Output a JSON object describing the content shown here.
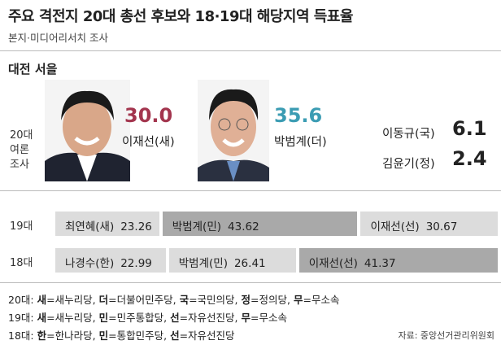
{
  "header": {
    "title": "주요 격전지 20대 총선 후보와 18·19대 해당지역 득표율",
    "subtitle": "본지·미디어리서치 조사"
  },
  "district": "대전 서을",
  "poll": {
    "label_lines": [
      "20대",
      "여론",
      "조사"
    ],
    "main": [
      {
        "name": "이재선(새)",
        "value": "30.0",
        "color": "#a3354e"
      },
      {
        "name": "박범계(더)",
        "value": "35.6",
        "color": "#3b9cb3"
      }
    ],
    "others": [
      {
        "name": "이동규(국)",
        "value": "6.1"
      },
      {
        "name": "김윤기(정)",
        "value": "2.4"
      }
    ]
  },
  "results": [
    {
      "label": "19대",
      "segments": [
        {
          "name": "최연혜(새)",
          "value": 23.26,
          "color": "#dcdcdc"
        },
        {
          "name": "박범계(민)",
          "value": 43.62,
          "color": "#a9a9a9"
        },
        {
          "name": "이재선(선)",
          "value": 30.67,
          "color": "#dcdcdc"
        }
      ]
    },
    {
      "label": "18대",
      "segments": [
        {
          "name": "나경수(한)",
          "value": 22.99,
          "color": "#dcdcdc"
        },
        {
          "name": "박범계(민)",
          "value": 26.41,
          "color": "#dcdcdc"
        },
        {
          "name": "이재선(선)",
          "value": 41.37,
          "color": "#a9a9a9"
        }
      ]
    }
  ],
  "legend": [
    {
      "label": "20대:",
      "items": [
        {
          "abbr": "새",
          "text": "=새누리당,"
        },
        {
          "abbr": "더",
          "text": "=더불어민주당,"
        },
        {
          "abbr": "국",
          "text": "=국민의당,"
        },
        {
          "abbr": "정",
          "text": "=정의당,"
        },
        {
          "abbr": "무",
          "text": "=무소속"
        }
      ]
    },
    {
      "label": "19대:",
      "items": [
        {
          "abbr": "새",
          "text": "=새누리당,"
        },
        {
          "abbr": "민",
          "text": "=민주통합당,"
        },
        {
          "abbr": "선",
          "text": "=자유선진당,"
        },
        {
          "abbr": "무",
          "text": "=무소속"
        }
      ]
    },
    {
      "label": "18대:",
      "items": [
        {
          "abbr": "한",
          "text": "=한나라당,"
        },
        {
          "abbr": "민",
          "text": "=통합민주당,"
        },
        {
          "abbr": "선",
          "text": "=자유선진당"
        }
      ]
    }
  ],
  "source": "자료: 중앙선거관리위원회"
}
